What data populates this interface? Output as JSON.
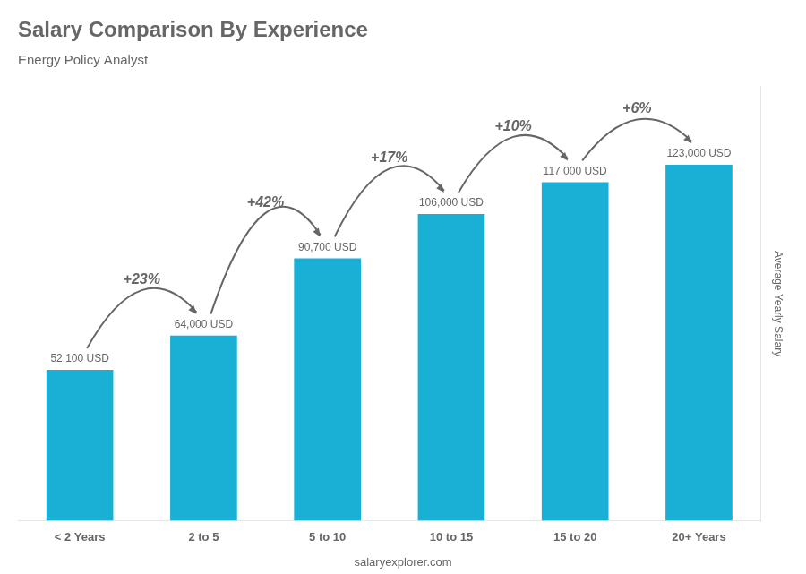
{
  "chart_data": {
    "type": "bar",
    "title": "Salary Comparison By Experience",
    "subtitle": "Energy Policy Analyst",
    "categories": [
      "< 2 Years",
      "2 to 5",
      "5 to 10",
      "10 to 15",
      "15 to 20",
      "20+ Years"
    ],
    "values": [
      52100,
      64000,
      90700,
      106000,
      117000,
      123000
    ],
    "value_labels": [
      "52,100 USD",
      "64,000 USD",
      "90,700 USD",
      "106,000 USD",
      "117,000 USD",
      "123,000 USD"
    ],
    "data_labels": true,
    "annotations": [
      "+23%",
      "+42%",
      "+17%",
      "+10%",
      "+6%"
    ],
    "ylabel": "Average Yearly Salary",
    "footer": "salaryexplorer.com",
    "color": "#1ab0d5",
    "ylim": [
      0,
      150000
    ],
    "grid": false,
    "tick_labels": "x"
  }
}
